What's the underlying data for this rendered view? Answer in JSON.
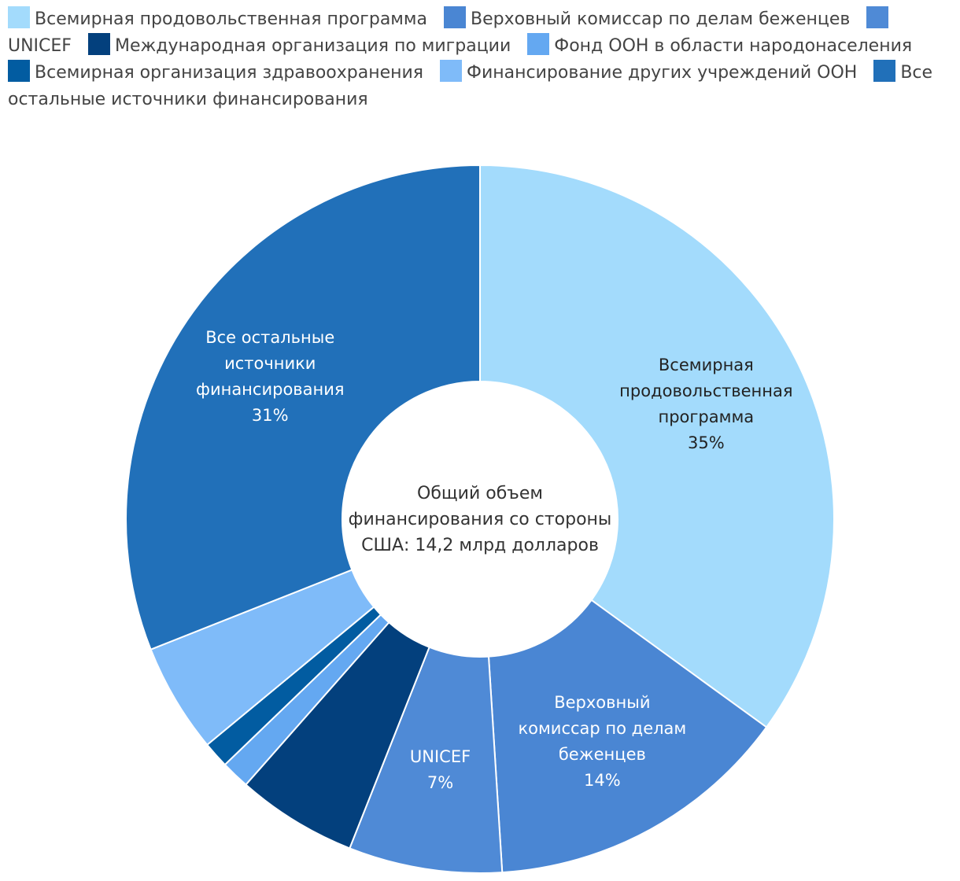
{
  "chart_data": {
    "type": "pie",
    "center_label": [
      "Общий объем",
      "финансирования со стороны",
      "США: 14,2 млрд долларов"
    ],
    "slices": [
      {
        "name": "Всемирная продовольственная программа",
        "value": 35,
        "percent_label": "35%",
        "color": "#a3dbfc",
        "label_lines": [
          "Всемирная",
          "продовольственная",
          "программа"
        ],
        "label_color": "#222222"
      },
      {
        "name": "Верховный комиссар по делам беженцев",
        "value": 14,
        "percent_label": "14%",
        "color": "#4a86d3",
        "label_lines": [
          "Верховный",
          "комиссар по делам",
          "беженцев"
        ],
        "label_color": "#ffffff"
      },
      {
        "name": "UNICEF",
        "value": 7,
        "percent_label": "7%",
        "color": "#4f8ad6",
        "label_lines": [
          "UNICEF"
        ],
        "label_color": "#ffffff"
      },
      {
        "name": "Международная организация по миграции",
        "value": 5.5,
        "color": "#03407d"
      },
      {
        "name": "Фонд ООН в области народонаселения",
        "value": 1.3,
        "color": "#64a8f1"
      },
      {
        "name": "Всемирная организация здравоохранения",
        "value": 1.2,
        "color": "#025ca1"
      },
      {
        "name": "Финансирование других учреждений ООН",
        "value": 5,
        "color": "#7fbbf9"
      },
      {
        "name": "Все остальные источники финансирования",
        "value": 31,
        "percent_label": "31%",
        "color": "#2170b9",
        "label_lines": [
          "Все остальные",
          "источники",
          "финансирования"
        ],
        "label_color": "#ffffff"
      }
    ]
  }
}
